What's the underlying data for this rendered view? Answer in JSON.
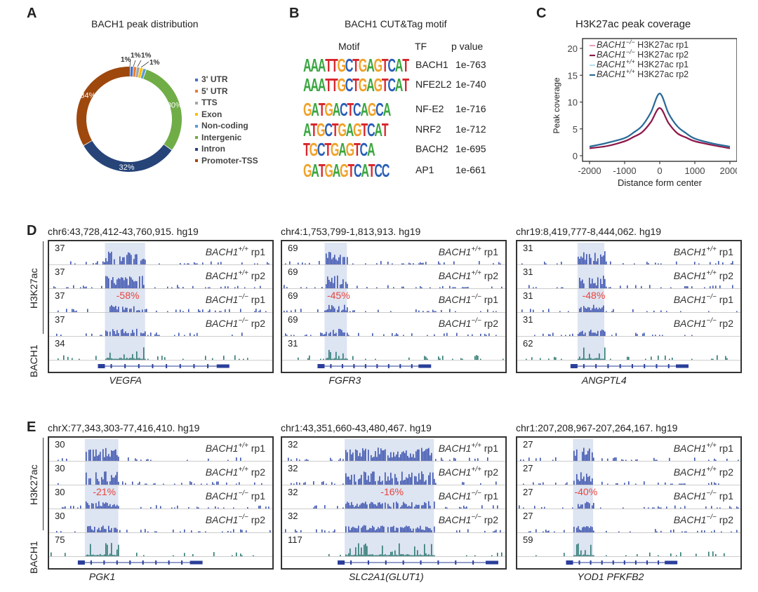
{
  "panels": {
    "A": {
      "letter": "A",
      "title": "BACH1 peak distribution",
      "chart_data": {
        "type": "pie",
        "title": "BACH1 peak distribution",
        "donut": true,
        "slices": [
          {
            "label": "3' UTR",
            "value": 1,
            "label_text": "1%",
            "color": "#4472c4"
          },
          {
            "label": "5' UTR",
            "value": 1,
            "label_text": "1%",
            "color": "#ed7d31"
          },
          {
            "label": "TTS",
            "value": 1,
            "label_text": "1%",
            "color": "#a5a5a5"
          },
          {
            "label": "Exon",
            "value": 1,
            "label_text": "1%",
            "color": "#ffc000"
          },
          {
            "label": "Non-coding",
            "value": 1,
            "label_text": "",
            "color": "#5b9bd5"
          },
          {
            "label": "Intergenic",
            "value": 30,
            "label_text": "30%",
            "color": "#70ad47"
          },
          {
            "label": "Intron",
            "value": 32,
            "label_text": "32%",
            "color": "#264478"
          },
          {
            "label": "Promoter-TSS",
            "value": 34,
            "label_text": "34%",
            "color": "#9e480e"
          }
        ],
        "legend_placement": "right"
      }
    },
    "B": {
      "letter": "B",
      "title": "BACH1 CUT&Tag motif",
      "headers": {
        "motif": "Motif",
        "tf": "TF",
        "pvalue": "p value"
      },
      "rows": [
        {
          "motif": "AAATTGCTGAGTCAT",
          "tf": "BACH1",
          "pvalue": "1e-763"
        },
        {
          "motif": "AAATTGCTGAGTCAT",
          "tf": "NFE2L2",
          "pvalue": "1e-740"
        },
        {
          "motif": "GATGACTCAGCA",
          "tf": "NF-E2",
          "pvalue": "1e-716"
        },
        {
          "motif": "ATGCTGAGTCAT",
          "tf": "NRF2",
          "pvalue": "1e-712"
        },
        {
          "motif": "TGCTGAGTCA",
          "tf": "BACH2",
          "pvalue": "1e-695"
        },
        {
          "motif": "GATGAGTCATCC",
          "tf": "AP1",
          "pvalue": "1e-661"
        }
      ],
      "base_colors": {
        "A": "#3aa640",
        "C": "#2a5fb8",
        "G": "#f0a22a",
        "T": "#d7252b"
      }
    },
    "C": {
      "letter": "C",
      "title": "H3K27ac peak coverage",
      "chart_data": {
        "type": "line",
        "title": "H3K27ac peak coverage",
        "xlabel": "Distance form center",
        "ylabel": "Peak coverage",
        "xlim": [
          -2000,
          2000
        ],
        "ylim": [
          0,
          20
        ],
        "xticks": [
          -2000,
          -1000,
          0,
          1000,
          2000
        ],
        "yticks": [
          0,
          5,
          10,
          15,
          20
        ],
        "legend_placement": "top-left",
        "x": [
          -2000,
          -1500,
          -1000,
          -750,
          -500,
          -250,
          0,
          250,
          500,
          750,
          1000,
          1500,
          2000
        ],
        "series": [
          {
            "name": "BACH1-/- H3K27ac rp1",
            "gene": "BACH1",
            "sup": "−/−",
            "suffix": " H3K27ac rp1",
            "color": "#e05a8a",
            "width": 1.2,
            "values": [
              1.3,
              1.8,
              2.6,
              3.4,
              4.3,
              6.2,
              8.8,
              6.0,
              4.1,
              3.3,
              2.6,
              1.9,
              1.3
            ]
          },
          {
            "name": "BACH1-/- H3K27ac rp2",
            "gene": "BACH1",
            "sup": "−/−",
            "suffix": " H3K27ac rp2",
            "color": "#8b1a4a",
            "width": 2.2,
            "values": [
              1.4,
              1.8,
              2.7,
              3.5,
              4.4,
              6.3,
              8.9,
              6.1,
              4.2,
              3.4,
              2.7,
              2.0,
              1.4
            ]
          },
          {
            "name": "BACH1+/+ H3K27ac rp1",
            "gene": "BACH1",
            "sup": "+/+",
            "suffix": " H3K27ac rp1",
            "color": "#7ec8e8",
            "width": 1.2,
            "values": [
              1.6,
              2.3,
              3.2,
              4.2,
              5.5,
              8.0,
              11.5,
              7.8,
              5.4,
              4.1,
              3.1,
              2.2,
              1.6
            ]
          },
          {
            "name": "BACH1+/+ H3K27ac rp2",
            "gene": "BACH1",
            "sup": "+/+",
            "suffix": " H3K27ac rp2",
            "color": "#2a6a96",
            "width": 2.2,
            "values": [
              1.7,
              2.4,
              3.3,
              4.3,
              5.6,
              8.1,
              11.6,
              7.9,
              5.5,
              4.2,
              3.2,
              2.3,
              1.7
            ]
          }
        ]
      }
    },
    "D": {
      "letter": "D",
      "side_labels": {
        "h3k27ac": "H3K27ac",
        "bach1": "BACH1"
      },
      "loci": [
        {
          "coord": "chr6:43,728,412-43,760,915. hg19",
          "gene": "VEGFA",
          "scales": [
            "37",
            "37",
            "37",
            "37",
            "34"
          ],
          "change": "-58%",
          "highlight": [
            0.25,
            0.43
          ],
          "seed": 3
        },
        {
          "coord": "chr4:1,753,799-1,813,913. hg19",
          "gene": "FGFR3",
          "scales": [
            "69",
            "69",
            "69",
            "69",
            "31"
          ],
          "change": "-45%",
          "highlight": [
            0.19,
            0.29
          ],
          "seed": 7
        },
        {
          "coord": "chr19:8,419,777-8,444,062. hg19",
          "gene": "ANGPTL4",
          "scales": [
            "31",
            "31",
            "31",
            "31",
            "62"
          ],
          "change": "-48%",
          "highlight": [
            0.27,
            0.39
          ],
          "seed": 11
        }
      ]
    },
    "E": {
      "letter": "E",
      "side_labels": {
        "h3k27ac": "H3K27ac",
        "bach1": "BACH1"
      },
      "loci": [
        {
          "coord": "chrX:77,343,303-77,416,410. hg19",
          "gene": "PGK1",
          "scales": [
            "30",
            "30",
            "30",
            "30",
            "75"
          ],
          "change": "-21%",
          "highlight": [
            0.16,
            0.31
          ],
          "seed": 5
        },
        {
          "coord": "chr1:43,351,660-43,480,467. hg19",
          "gene": "SLC2A1(GLUT1)",
          "scales": [
            "32",
            "32",
            "32",
            "32",
            "117"
          ],
          "change": "-16%",
          "highlight": [
            0.28,
            0.68
          ],
          "seed": 13
        },
        {
          "coord": "chr1:207,208,967-207,264,167. hg19",
          "gene": "YOD1  PFKFB2",
          "scales": [
            "27",
            "27",
            "27",
            "27",
            "59"
          ],
          "change": "-40%",
          "highlight": [
            0.25,
            0.34
          ],
          "seed": 17
        }
      ]
    }
  },
  "track_labels": [
    {
      "gene": "BACH1",
      "sup": "+/+",
      "rep": " rp1"
    },
    {
      "gene": "BACH1",
      "sup": "+/+",
      "rep": " rp2"
    },
    {
      "gene": "BACH1",
      "sup": "−/−",
      "rep": " rp1"
    },
    {
      "gene": "BACH1",
      "sup": "−/−",
      "rep": " rp2"
    }
  ],
  "colors": {
    "h3k27ac_track": "#3f56b0",
    "bach1_track": "#2e7a72",
    "highlight": "#dde4f2",
    "change_text": "#e8443a",
    "gene_model": "#2a3e9a"
  }
}
